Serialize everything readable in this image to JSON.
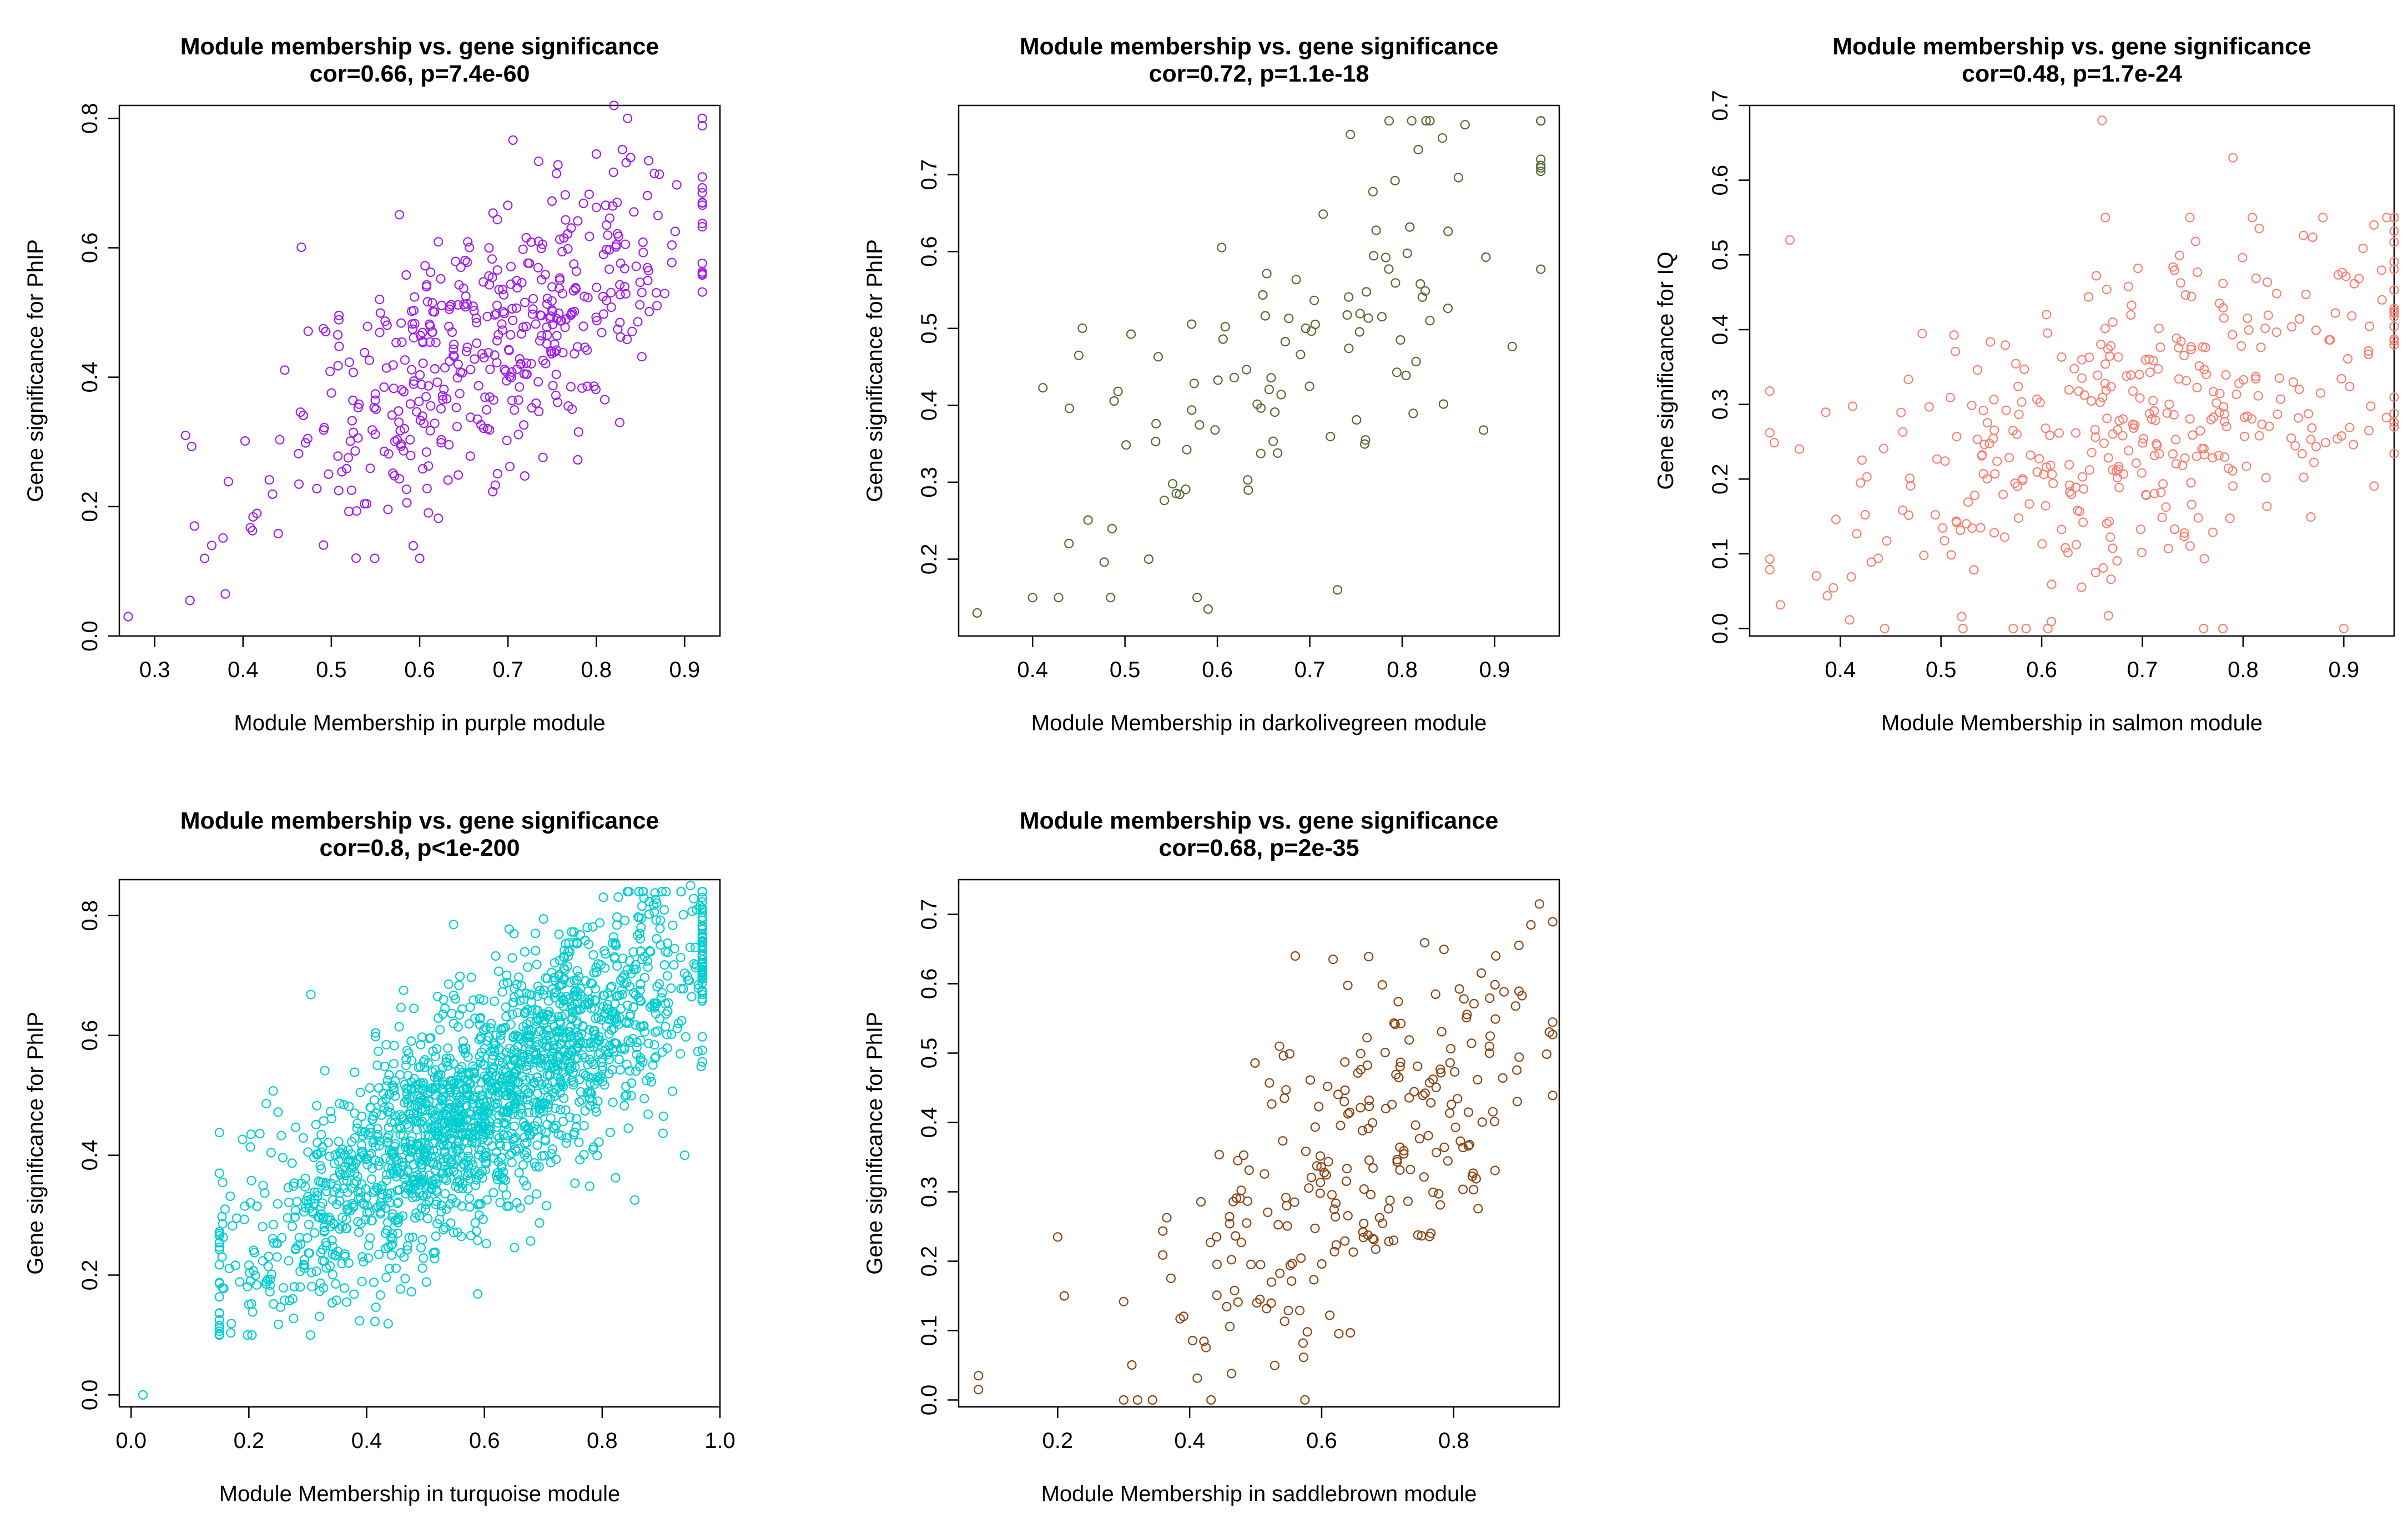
{
  "chart_data": [
    {
      "type": "scatter",
      "title": "Module membership vs. gene significance",
      "subtitle": "cor=0.66, p=7.4e-60",
      "xlabel": "Module Membership in purple module",
      "ylabel": "Gene significance for PhIP",
      "xlim": [
        0.26,
        0.94
      ],
      "ylim": [
        0.0,
        0.82
      ],
      "xticks": [
        "0.3",
        "0.4",
        "0.5",
        "0.6",
        "0.7",
        "0.8",
        "0.9"
      ],
      "yticks": [
        "0.0",
        "0.2",
        "0.4",
        "0.6",
        "0.8"
      ],
      "color": "#a020f0",
      "cluster": {
        "n": 480,
        "cor": 0.66,
        "x_mean": 0.68,
        "x_sd": 0.12,
        "y_mean": 0.46,
        "y_sd": 0.14,
        "x_range": [
          0.33,
          0.92
        ],
        "y_range": [
          0.12,
          0.8
        ],
        "seed": 11
      },
      "points": [
        [
          0.27,
          0.03
        ],
        [
          0.34,
          0.055
        ],
        [
          0.38,
          0.065
        ],
        [
          0.335,
          0.31
        ],
        [
          0.345,
          0.17
        ],
        [
          0.82,
          0.82
        ],
        [
          0.92,
          0.67
        ]
      ]
    },
    {
      "type": "scatter",
      "title": "Module membership vs. gene significance",
      "subtitle": "cor=0.72, p=1.1e-18",
      "xlabel": "Module Membership in darkolivegreen module",
      "ylabel": "Gene significance for PhIP",
      "xlim": [
        0.32,
        0.97
      ],
      "ylim": [
        0.1,
        0.79
      ],
      "xticks": [
        "0.4",
        "0.5",
        "0.6",
        "0.7",
        "0.8",
        "0.9"
      ],
      "yticks": [
        "0.2",
        "0.3",
        "0.4",
        "0.5",
        "0.6",
        "0.7"
      ],
      "color": "#556b2f",
      "cluster": {
        "n": 110,
        "cor": 0.72,
        "x_mean": 0.68,
        "x_sd": 0.13,
        "y_mean": 0.47,
        "y_sd": 0.14,
        "x_range": [
          0.4,
          0.95
        ],
        "y_range": [
          0.15,
          0.77
        ],
        "seed": 22
      },
      "points": [
        [
          0.34,
          0.13
        ],
        [
          0.59,
          0.135
        ],
        [
          0.83,
          0.77
        ],
        [
          0.95,
          0.72
        ],
        [
          0.45,
          0.465
        ],
        [
          0.73,
          0.16
        ]
      ]
    },
    {
      "type": "scatter",
      "title": "Module membership vs. gene significance",
      "subtitle": "cor=0.48, p=1.7e-24",
      "xlabel": "Module Membership in salmon module",
      "ylabel": "Gene significance for IQ",
      "xlim": [
        0.31,
        0.95
      ],
      "ylim": [
        -0.01,
        0.7
      ],
      "xticks": [
        "0.4",
        "0.5",
        "0.6",
        "0.7",
        "0.8",
        "0.9"
      ],
      "yticks": [
        "0.0",
        "0.1",
        "0.2",
        "0.3",
        "0.4",
        "0.5",
        "0.6",
        "0.7"
      ],
      "color": "#fa8072",
      "cluster": {
        "n": 400,
        "cor": 0.48,
        "x_mean": 0.7,
        "x_sd": 0.15,
        "y_mean": 0.28,
        "y_sd": 0.12,
        "x_range": [
          0.33,
          0.95
        ],
        "y_range": [
          0.0,
          0.55
        ],
        "seed": 33
      },
      "points": [
        [
          0.35,
          0.52
        ],
        [
          0.66,
          0.68
        ],
        [
          0.79,
          0.63
        ],
        [
          0.78,
          0.0
        ],
        [
          0.9,
          0.0
        ],
        [
          0.93,
          0.54
        ]
      ]
    },
    {
      "type": "scatter",
      "title": "Module membership vs. gene significance",
      "subtitle": "cor=0.8, p<1e-200",
      "xlabel": "Module Membership in turquoise module",
      "ylabel": "Gene significance for PhIP",
      "xlim": [
        -0.02,
        1.0
      ],
      "ylim": [
        -0.02,
        0.86
      ],
      "xticks": [
        "0.0",
        "0.2",
        "0.4",
        "0.6",
        "0.8",
        "1.0"
      ],
      "yticks": [
        "0.0",
        "0.2",
        "0.4",
        "0.6",
        "0.8"
      ],
      "color": "#00ced1",
      "cluster": {
        "n": 2000,
        "cor": 0.8,
        "x_mean": 0.6,
        "x_sd": 0.2,
        "y_mean": 0.49,
        "y_sd": 0.16,
        "x_range": [
          0.15,
          0.97
        ],
        "y_range": [
          0.1,
          0.84
        ],
        "seed": 44
      },
      "points": [
        [
          0.02,
          0.0
        ],
        [
          0.94,
          0.4
        ],
        [
          0.95,
          0.85
        ],
        [
          0.15,
          0.37
        ]
      ]
    },
    {
      "type": "scatter",
      "title": "Module membership vs. gene significance",
      "subtitle": "cor=0.68, p=2e-35",
      "xlabel": "Module Membership in saddlebrown module",
      "ylabel": "Gene significance for PhIP",
      "xlim": [
        0.05,
        0.96
      ],
      "ylim": [
        -0.01,
        0.75
      ],
      "xticks": [
        "0.2",
        "0.4",
        "0.6",
        "0.8"
      ],
      "yticks": [
        "0.0",
        "0.1",
        "0.2",
        "0.3",
        "0.4",
        "0.5",
        "0.6",
        "0.7"
      ],
      "color": "#8b4513",
      "cluster": {
        "n": 250,
        "cor": 0.68,
        "x_mean": 0.65,
        "x_sd": 0.16,
        "y_mean": 0.34,
        "y_sd": 0.15,
        "x_range": [
          0.3,
          0.95
        ],
        "y_range": [
          0.0,
          0.72
        ],
        "seed": 55
      },
      "points": [
        [
          0.08,
          0.035
        ],
        [
          0.08,
          0.015
        ],
        [
          0.2,
          0.235
        ],
        [
          0.21,
          0.15
        ],
        [
          0.93,
          0.715
        ],
        [
          0.56,
          0.64
        ]
      ]
    }
  ]
}
